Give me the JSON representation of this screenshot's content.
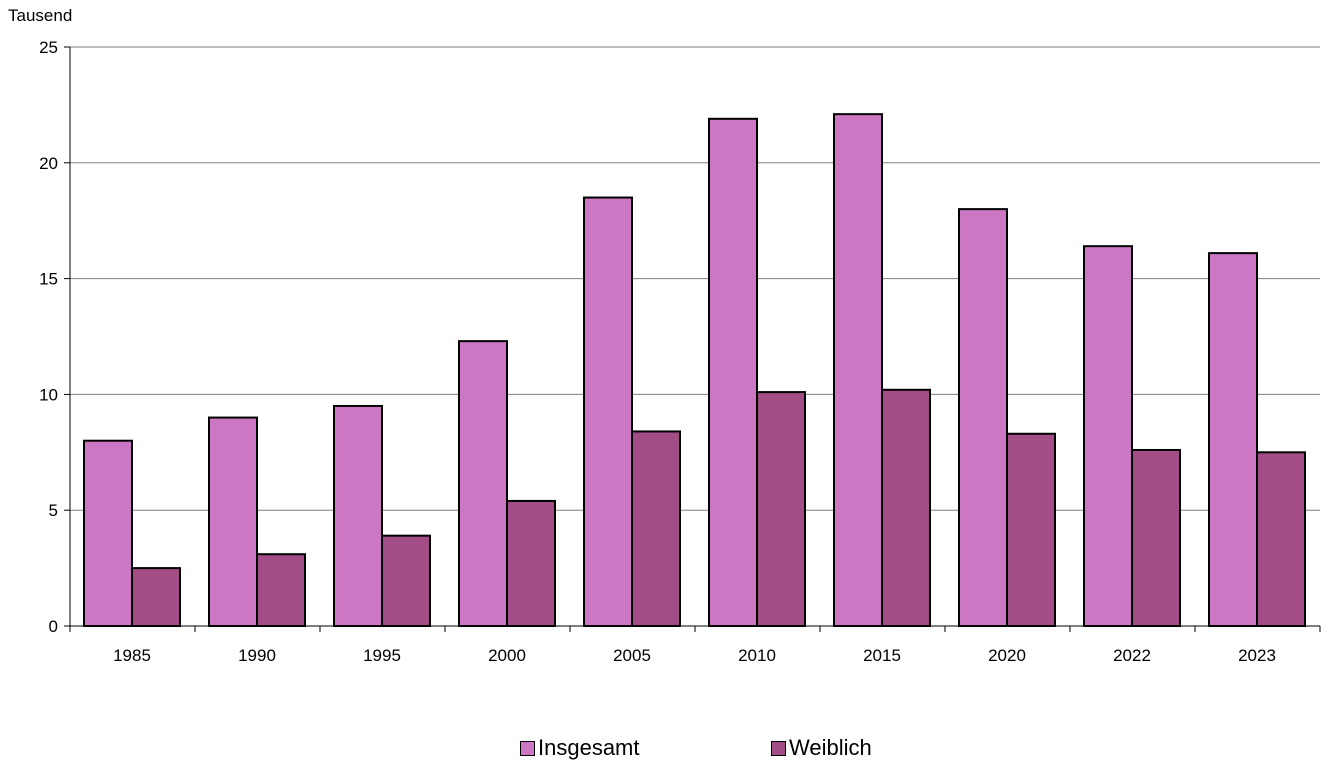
{
  "chart_data": {
    "type": "bar",
    "ylabel": "Tausend",
    "ylim": [
      0,
      25
    ],
    "yticks": [
      0,
      5,
      10,
      15,
      20,
      25
    ],
    "categories": [
      "1985",
      "1990",
      "1995",
      "2000",
      "2005",
      "2010",
      "2015",
      "2020",
      "2022",
      "2023"
    ],
    "series": [
      {
        "name": "Insgesamt",
        "color": "#cc77c4",
        "values": [
          8.0,
          9.0,
          9.5,
          12.3,
          18.5,
          21.9,
          22.1,
          18.0,
          16.4,
          16.1
        ]
      },
      {
        "name": "Weiblich",
        "color": "#a24d86",
        "values": [
          2.5,
          3.1,
          3.9,
          5.4,
          8.4,
          10.1,
          10.2,
          8.3,
          7.6,
          7.5
        ]
      }
    ],
    "grid": true,
    "legend": "bottom"
  }
}
